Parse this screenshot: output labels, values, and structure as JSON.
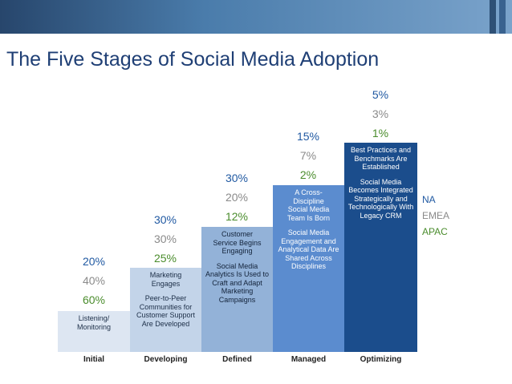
{
  "title": "The Five Stages of Social Media Adoption",
  "colors": {
    "na": "#2059a2",
    "emea": "#8a8a8a",
    "apac": "#4a8c2c"
  },
  "legend": {
    "na": "NA",
    "emea": "EMEA",
    "apac": "APAC"
  },
  "stages": [
    {
      "name": "Initial",
      "na": "20%",
      "emea": "40%",
      "apac": "60%",
      "text1": "Listening/ Monitoring",
      "text2": ""
    },
    {
      "name": "Developing",
      "na": "30%",
      "emea": "30%",
      "apac": "25%",
      "text1": "Marketing Engages",
      "text2": "Peer-to-Peer Communities for Customer Support Are Developed"
    },
    {
      "name": "Defined",
      "na": "30%",
      "emea": "20%",
      "apac": "12%",
      "text1": "Customer Service Begins Engaging",
      "text2": "Social Media Analytics Is Used to Craft and Adapt Marketing Campaigns"
    },
    {
      "name": "Managed",
      "na": "15%",
      "emea": "7%",
      "apac": "2%",
      "text1": "A Cross-Discipline Social Media Team Is Born",
      "text2": "Social Media Engagement and Analytical Data Are Shared Across Disciplines"
    },
    {
      "name": "Optimizing",
      "na": "5%",
      "emea": "3%",
      "apac": "1%",
      "text1": "Best Practices and Benchmarks Are Established",
      "text2": "Social Media Becomes Integrated Strategically and Technologically With Legacy CRM"
    }
  ]
}
